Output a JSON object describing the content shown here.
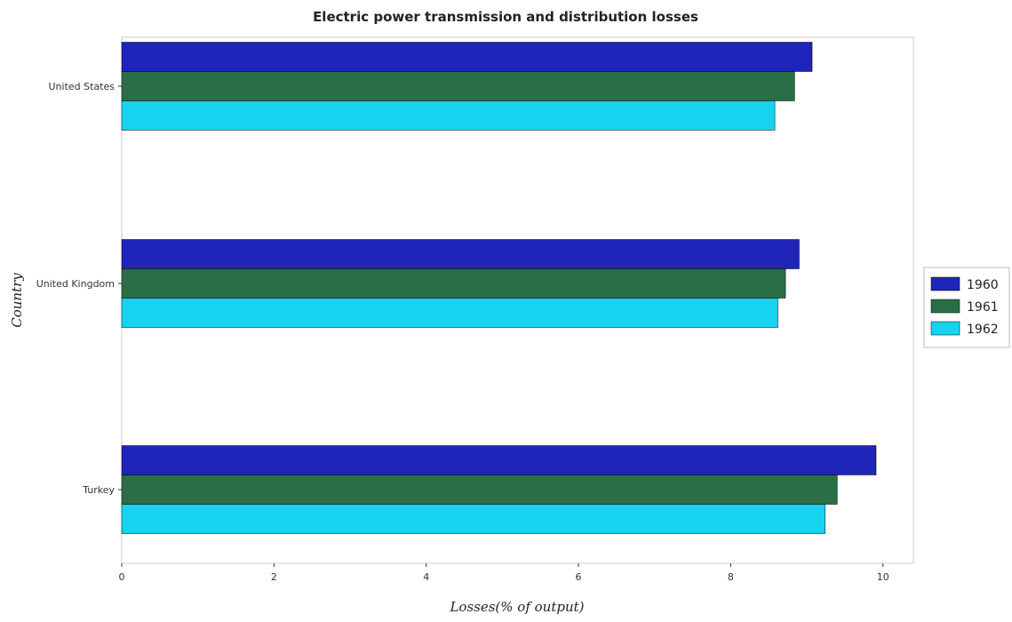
{
  "chart_data": {
    "type": "bar",
    "orientation": "horizontal",
    "title": "Electric power transmission and distribution losses",
    "xlabel": "Losses(% of output)",
    "ylabel": "Country",
    "categories": [
      "Turkey",
      "United Kingdom",
      "United States"
    ],
    "series": [
      {
        "name": "1960",
        "color": "#1f25b8",
        "values": [
          9.91,
          8.9,
          9.07
        ]
      },
      {
        "name": "1961",
        "color": "#2a6e45",
        "values": [
          9.4,
          8.72,
          8.84
        ]
      },
      {
        "name": "1962",
        "color": "#18d3f0",
        "values": [
          9.24,
          8.62,
          8.58
        ]
      }
    ],
    "xlim": [
      0,
      10.4
    ],
    "xticks": [
      "0",
      "2",
      "4",
      "6",
      "8",
      "10"
    ],
    "grid": false,
    "legend_position": "right"
  }
}
